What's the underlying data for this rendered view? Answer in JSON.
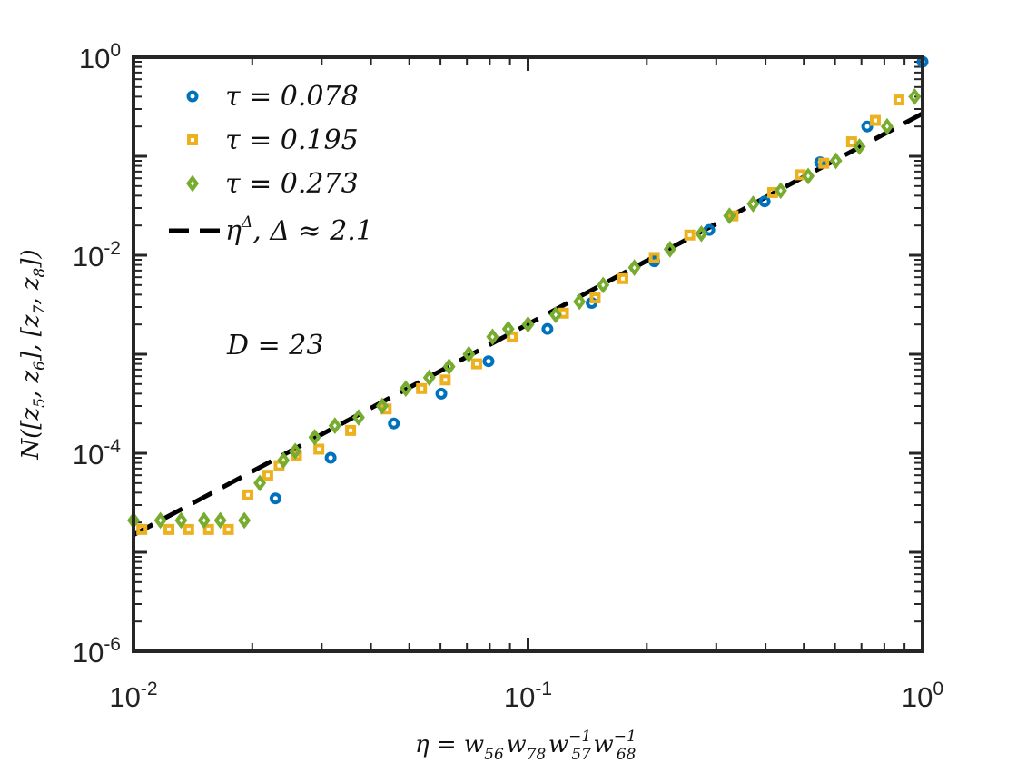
{
  "chart_data": {
    "type": "scatter",
    "xscale": "log",
    "yscale": "log",
    "xlim": [
      0.01,
      1
    ],
    "ylim": [
      1e-06,
      1
    ],
    "grid": false,
    "legend_position": "top-left",
    "x_ticks": [
      {
        "value": 0.01,
        "base": "10",
        "exp": "-2"
      },
      {
        "value": 0.1,
        "base": "10",
        "exp": "-1"
      },
      {
        "value": 1,
        "base": "10",
        "exp": "0"
      }
    ],
    "y_ticks": [
      {
        "value": 1e-06,
        "base": "10",
        "exp": "-6"
      },
      {
        "value": 0.0001,
        "base": "10",
        "exp": "-4"
      },
      {
        "value": 0.01,
        "base": "10",
        "exp": "-2"
      },
      {
        "value": 1,
        "base": "10",
        "exp": "0"
      }
    ],
    "xlabel": {
      "prefix": "η = ",
      "parts": [
        {
          "base": "w",
          "sub": "56",
          "sup": ""
        },
        {
          "base": "w",
          "sub": "78",
          "sup": ""
        },
        {
          "base": "w",
          "sub": "57",
          "sup": "−1"
        },
        {
          "base": "w",
          "sub": "68",
          "sup": "−1"
        }
      ]
    },
    "ylabel": {
      "pre": "N([z",
      "segments": [
        {
          "sub": "5",
          "after": ", z"
        },
        {
          "sub": "6",
          "after": "], [z"
        },
        {
          "sub": "7",
          "after": ", z"
        },
        {
          "sub": "8",
          "after": "])"
        }
      ]
    },
    "annotation": "D = 23",
    "series": [
      {
        "name": "τ = 0.078",
        "marker": "circle",
        "color": "#0072BD",
        "points": [
          [
            0.0229,
            3.5e-05
          ],
          [
            0.0316,
            9e-05
          ],
          [
            0.0457,
            0.0002
          ],
          [
            0.0603,
            0.0004
          ],
          [
            0.0794,
            0.00085
          ],
          [
            0.112,
            0.0018
          ],
          [
            0.145,
            0.0033
          ],
          [
            0.209,
            0.0087
          ],
          [
            0.288,
            0.018
          ],
          [
            0.398,
            0.035
          ],
          [
            0.55,
            0.087
          ],
          [
            0.724,
            0.2
          ],
          [
            1.0,
            0.9
          ]
        ]
      },
      {
        "name": "τ = 0.195",
        "marker": "square",
        "color": "#EDB120",
        "points": [
          [
            0.0105,
            1.7e-05
          ],
          [
            0.0123,
            1.7e-05
          ],
          [
            0.0138,
            1.7e-05
          ],
          [
            0.0155,
            1.7e-05
          ],
          [
            0.0174,
            1.7e-05
          ],
          [
            0.0195,
            3.8e-05
          ],
          [
            0.0219,
            6e-05
          ],
          [
            0.0234,
            7.5e-05
          ],
          [
            0.0259,
            9.5e-05
          ],
          [
            0.0295,
            0.00011
          ],
          [
            0.0355,
            0.00017
          ],
          [
            0.0437,
            0.00028
          ],
          [
            0.0537,
            0.00045
          ],
          [
            0.0617,
            0.00055
          ],
          [
            0.0741,
            0.0008
          ],
          [
            0.0912,
            0.0015
          ],
          [
            0.123,
            0.0026
          ],
          [
            0.148,
            0.0037
          ],
          [
            0.174,
            0.0058
          ],
          [
            0.209,
            0.0095
          ],
          [
            0.257,
            0.016
          ],
          [
            0.331,
            0.025
          ],
          [
            0.417,
            0.043
          ],
          [
            0.49,
            0.065
          ],
          [
            0.562,
            0.085
          ],
          [
            0.661,
            0.14
          ],
          [
            0.759,
            0.23
          ],
          [
            0.871,
            0.37
          ]
        ]
      },
      {
        "name": "τ = 0.273",
        "marker": "diamond",
        "color": "#77AC30",
        "points": [
          [
            0.01,
            2.1e-05
          ],
          [
            0.0117,
            2.1e-05
          ],
          [
            0.0132,
            2.1e-05
          ],
          [
            0.0151,
            2.1e-05
          ],
          [
            0.0166,
            2.1e-05
          ],
          [
            0.0191,
            2.1e-05
          ],
          [
            0.0209,
            5e-05
          ],
          [
            0.024,
            8.5e-05
          ],
          [
            0.0257,
            0.000105
          ],
          [
            0.0288,
            0.000145
          ],
          [
            0.0324,
            0.00019
          ],
          [
            0.0372,
            0.00023
          ],
          [
            0.0427,
            0.0003
          ],
          [
            0.049,
            0.00045
          ],
          [
            0.0562,
            0.00058
          ],
          [
            0.0631,
            0.00075
          ],
          [
            0.0708,
            0.001
          ],
          [
            0.0813,
            0.0015
          ],
          [
            0.0891,
            0.0018
          ],
          [
            0.1,
            0.002
          ],
          [
            0.1175,
            0.0025
          ],
          [
            0.135,
            0.0034
          ],
          [
            0.155,
            0.005
          ],
          [
            0.186,
            0.0075
          ],
          [
            0.229,
            0.0115
          ],
          [
            0.275,
            0.0165
          ],
          [
            0.324,
            0.025
          ],
          [
            0.372,
            0.033
          ],
          [
            0.437,
            0.045
          ],
          [
            0.513,
            0.063
          ],
          [
            0.603,
            0.09
          ],
          [
            0.692,
            0.125
          ],
          [
            0.813,
            0.2
          ],
          [
            0.955,
            0.4
          ]
        ]
      }
    ],
    "fit_line": {
      "legend_label": {
        "pre": "η",
        "sup": "Δ",
        "post": ",  Δ ≈ 2.1"
      },
      "style": "dashed",
      "color": "#000000",
      "x": [
        0.01,
        1.0
      ],
      "y": [
        1.5e-05,
        0.27
      ]
    }
  }
}
